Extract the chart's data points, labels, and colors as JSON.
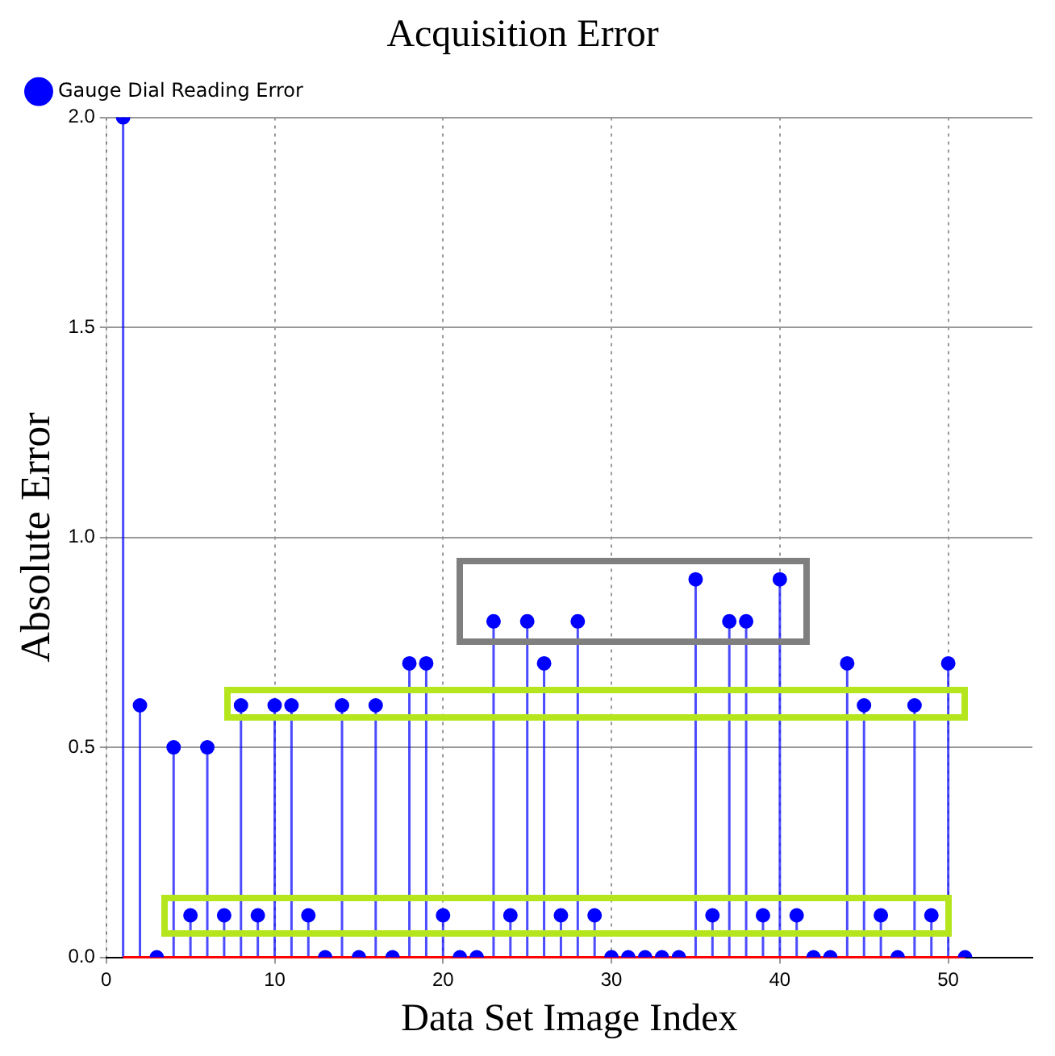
{
  "chart_data": {
    "type": "lollipop",
    "title": "Acquisition Error",
    "xlabel": "Data Set Image Index",
    "ylabel": "Absolute Error",
    "x": [
      1,
      2,
      3,
      4,
      5,
      6,
      7,
      8,
      9,
      10,
      11,
      12,
      13,
      14,
      15,
      16,
      17,
      18,
      19,
      20,
      21,
      22,
      23,
      24,
      25,
      26,
      27,
      28,
      29,
      30,
      31,
      32,
      33,
      34,
      35,
      36,
      37,
      38,
      39,
      40,
      41,
      42,
      43,
      44,
      45,
      46,
      47,
      48,
      49,
      50,
      51
    ],
    "series": [
      {
        "name": "Gauge Dial Reading Error",
        "color": "#0000ff",
        "values": [
          2.0,
          0.6,
          0,
          0.5,
          0.1,
          0.5,
          0.1,
          0.6,
          0.1,
          0.6,
          0.6,
          0.1,
          0,
          0.6,
          0,
          0.6,
          0,
          0.7,
          0.7,
          0.1,
          0,
          0,
          0.8,
          0.1,
          0.8,
          0.7,
          0.1,
          0.8,
          0.1,
          0,
          0,
          0,
          0,
          0,
          0.9,
          0.1,
          0.8,
          0.8,
          0.1,
          0.9,
          0.1,
          0,
          0,
          0.7,
          0.6,
          0.1,
          0,
          0.6,
          0.1,
          0.7,
          0
        ]
      }
    ],
    "xlim": [
      0,
      55
    ],
    "xticks": [
      0,
      10,
      20,
      30,
      40,
      50
    ],
    "ylim": [
      0,
      2.0
    ],
    "yticks": [
      {
        "value": 0,
        "label": "0.0"
      },
      {
        "value": 0.5,
        "label": "0.5"
      },
      {
        "value": 1.0,
        "label": "1.0"
      },
      {
        "value": 1.5,
        "label": "1.5"
      },
      {
        "value": 2.0,
        "label": "2.0"
      }
    ],
    "grid": true,
    "legend": "top left",
    "marker": "circle"
  }
}
